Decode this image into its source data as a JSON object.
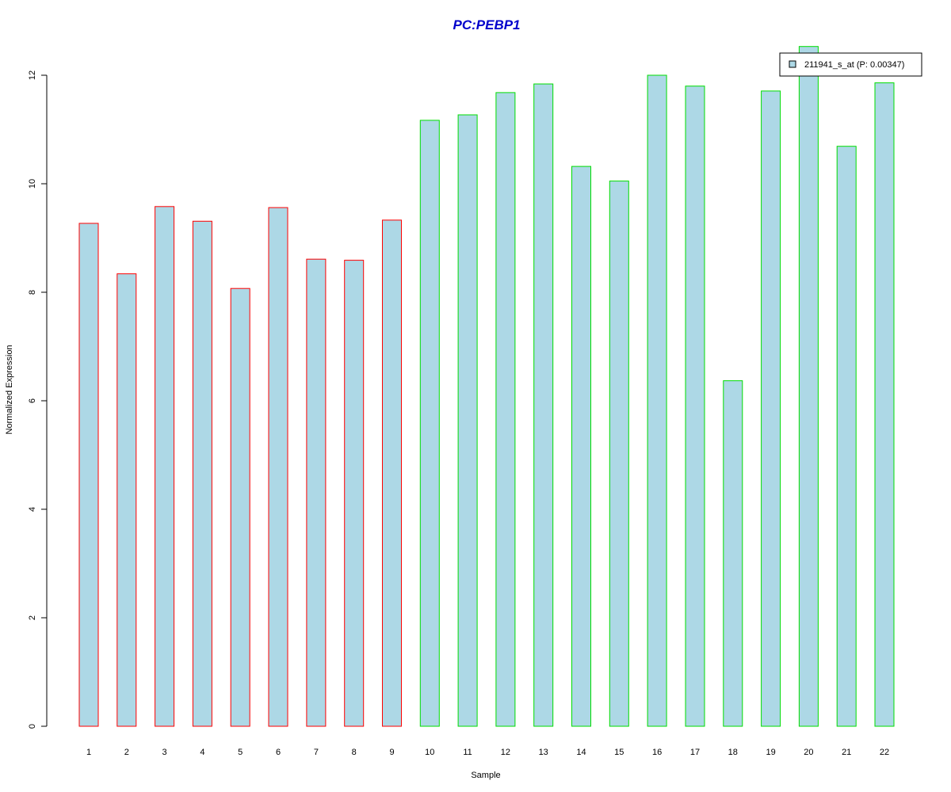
{
  "chart_data": {
    "type": "bar",
    "title": "PC:PEBP1",
    "xlabel": "Sample",
    "ylabel": "Normalized Expression",
    "categories": [
      "1",
      "2",
      "3",
      "4",
      "5",
      "6",
      "7",
      "8",
      "9",
      "10",
      "11",
      "12",
      "13",
      "14",
      "15",
      "16",
      "17",
      "18",
      "19",
      "20",
      "21",
      "22"
    ],
    "values": [
      9.27,
      8.34,
      9.58,
      9.31,
      8.07,
      9.56,
      8.61,
      8.59,
      9.33,
      11.17,
      11.27,
      11.68,
      11.84,
      10.32,
      10.05,
      12.0,
      11.8,
      6.37,
      11.71,
      12.53,
      10.69,
      11.86
    ],
    "groups": [
      "a",
      "a",
      "a",
      "a",
      "a",
      "a",
      "a",
      "a",
      "a",
      "b",
      "b",
      "b",
      "b",
      "b",
      "b",
      "b",
      "b",
      "b",
      "b",
      "b",
      "b",
      "b"
    ],
    "group_border_colors": {
      "a": "#ff0000",
      "b": "#00dd00"
    },
    "bar_fill": "#add8e6",
    "title_color": "#0000cc",
    "yticks": [
      0,
      2,
      4,
      6,
      8,
      10,
      12
    ],
    "ylim": [
      0,
      12.53
    ],
    "grid": false,
    "legend": {
      "placement": "top-right",
      "entries": [
        {
          "label": "211941_s_at (P: 0.00347)",
          "fill": "#add8e6"
        }
      ]
    }
  }
}
